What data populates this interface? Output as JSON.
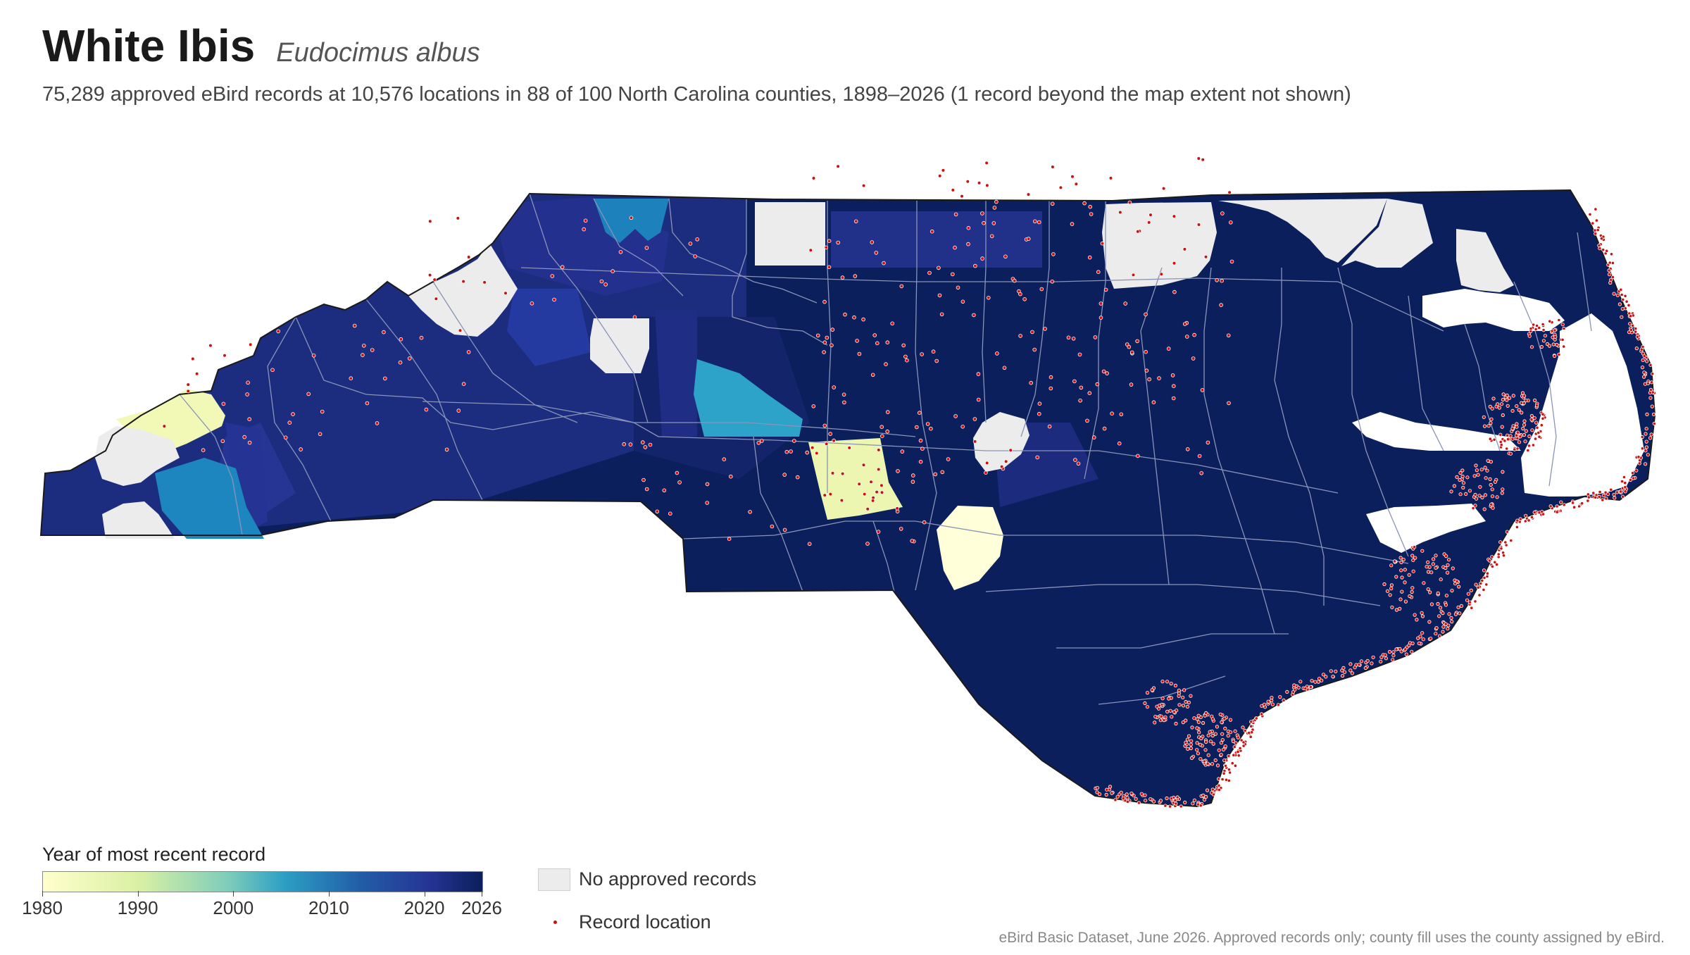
{
  "header": {
    "title": "White Ibis",
    "scientific_name": "Eudocimus albus",
    "subtitle": "75,289 approved eBird records at 10,576 locations in 88 of 100 North Carolina counties, 1898–2026 (1 record beyond the map extent not shown)"
  },
  "legend": {
    "title": "Year of most recent record",
    "ticks": [
      "1980",
      "1990",
      "2000",
      "2010",
      "2020",
      "2026"
    ],
    "no_records_label": "No approved records",
    "record_location_label": "Record location"
  },
  "source_note": "eBird Basic Dataset, June 2026. Approved records only; county fill uses the county assigned by eBird.",
  "colors": {
    "most_recent_dark": "#0b1f5c",
    "recent_navy": "#253494",
    "mid_blue": "#2c9fc4",
    "old_yellow": "#f2f9b6",
    "oldest_yellow": "#ffffcc",
    "no_records": "#ececec",
    "record_dot": "#cc1111",
    "county_border": "#8a93b8"
  }
}
